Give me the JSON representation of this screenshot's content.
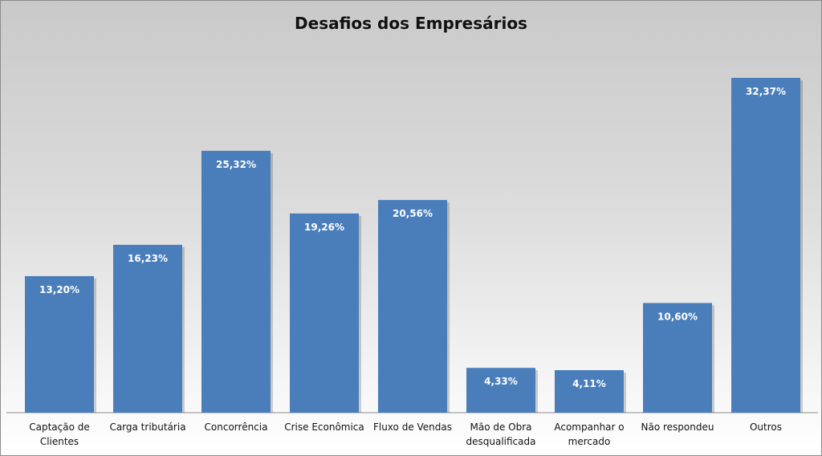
{
  "chart_data": {
    "type": "bar",
    "title": "Desafios dos Empresários",
    "xlabel": "",
    "ylabel": "",
    "ylim": [
      0,
      35
    ],
    "grid": false,
    "legend": "none",
    "bar_color": "#4a7ebb",
    "categories": [
      [
        "Captação de",
        "Clientes"
      ],
      [
        "Carga tributária"
      ],
      [
        "Concorrência"
      ],
      [
        "Crise Econômica"
      ],
      [
        "Fluxo de Vendas"
      ],
      [
        "Mão de Obra",
        "desqualificada"
      ],
      [
        "Acompanhar o",
        "mercado"
      ],
      [
        "Não respondeu"
      ],
      [
        "Outros"
      ]
    ],
    "values": [
      13.2,
      16.23,
      25.32,
      19.26,
      20.56,
      4.33,
      4.11,
      10.6,
      32.37
    ],
    "data_labels": [
      "13,20%",
      "16,23%",
      "25,32%",
      "19,26%",
      "20,56%",
      "4,33%",
      "4,11%",
      "10,60%",
      "32,37%"
    ]
  }
}
